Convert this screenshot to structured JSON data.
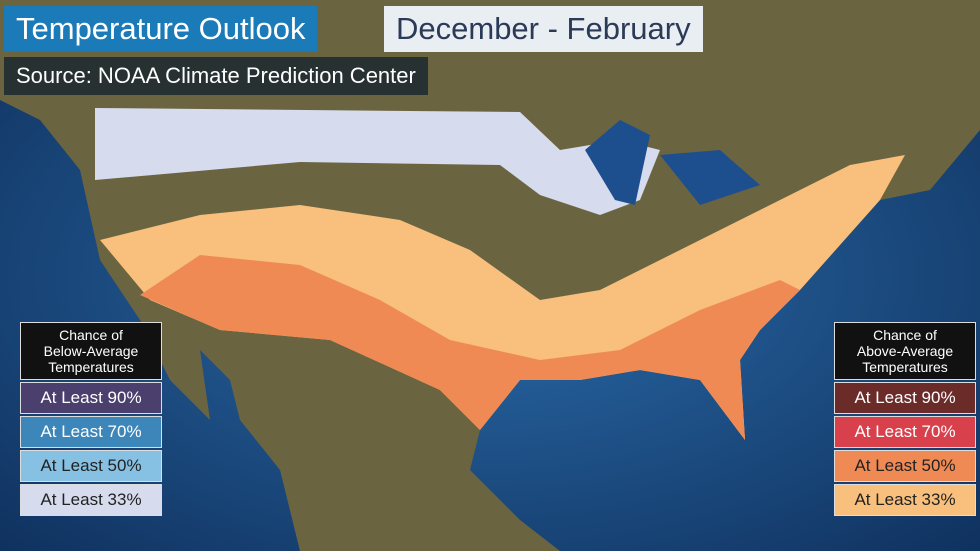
{
  "header": {
    "title": "Temperature Outlook",
    "period": "December - February",
    "source": "Source: NOAA Climate Prediction Center"
  },
  "legends": [
    {
      "title": [
        "Chance of",
        "Below-Average",
        "Temperatures"
      ],
      "items": [
        {
          "label": "At Least 90%",
          "color": "#4b3f6e"
        },
        {
          "label": "At Least 70%",
          "color": "#3d86b9"
        },
        {
          "label": "At Least 50%",
          "color": "#86c0e2"
        },
        {
          "label": "At Least 33%",
          "color": "#d6dcee"
        }
      ]
    },
    {
      "title": [
        "Chance of",
        "Above-Average",
        "Temperatures"
      ],
      "items": [
        {
          "label": "At Least 90%",
          "color": "#6b2b28"
        },
        {
          "label": "At Least 70%",
          "color": "#d8404b"
        },
        {
          "label": "At Least 50%",
          "color": "#f08a54"
        },
        {
          "label": "At Least 33%",
          "color": "#f8c07c"
        }
      ]
    }
  ]
}
